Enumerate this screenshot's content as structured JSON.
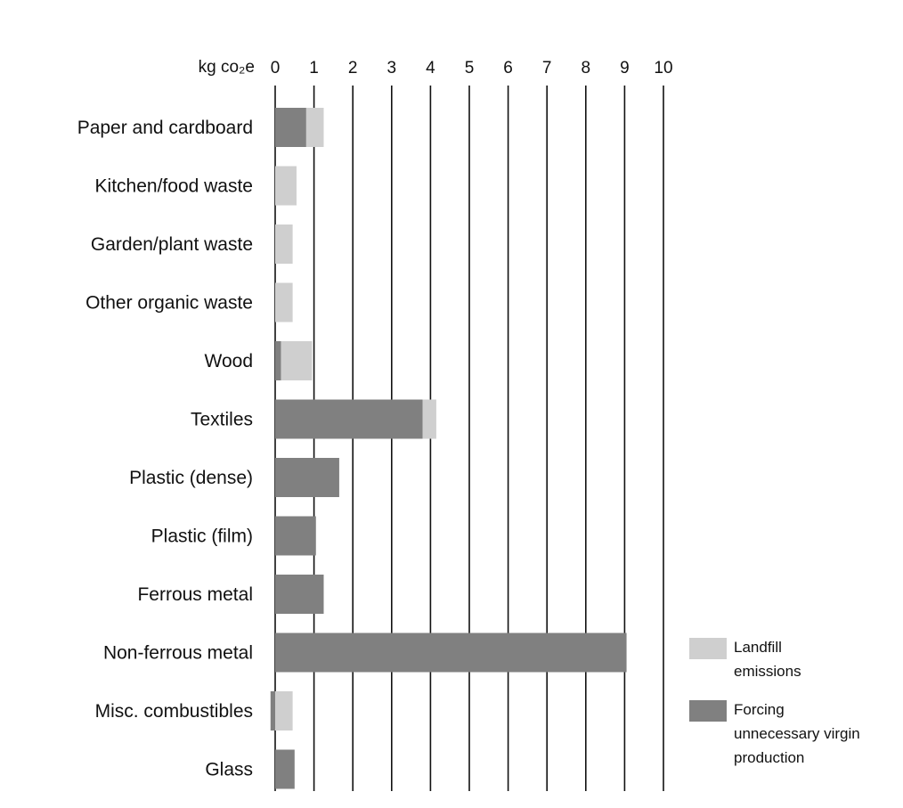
{
  "chart_data": {
    "type": "bar",
    "orientation": "horizontal",
    "stacked": true,
    "unit_label": "kg co₂e",
    "xlim": [
      0,
      10
    ],
    "x_ticks": [
      0,
      1,
      2,
      3,
      4,
      5,
      6,
      7,
      8,
      9,
      10
    ],
    "grid": true,
    "categories": [
      "Paper and cardboard",
      "Kitchen/food waste",
      "Garden/plant waste",
      "Other organic waste",
      "Wood",
      "Textiles",
      "Plastic (dense)",
      "Plastic (film)",
      "Ferrous metal",
      "Non-ferrous metal",
      "Misc. combustibles",
      "Glass"
    ],
    "series": [
      {
        "name": "Forcing unnecessary virgin production",
        "legend_lines": [
          "Forcing",
          "unnecessary virgin",
          "production"
        ],
        "color": "#808080",
        "values": [
          0.8,
          0.0,
          0.0,
          0.0,
          0.15,
          3.8,
          1.65,
          1.05,
          1.25,
          9.05,
          0.12,
          0.5
        ]
      },
      {
        "name": "Landfill emissions",
        "legend_lines": [
          "Landfill",
          "emissions"
        ],
        "color": "#cfcfcf",
        "values": [
          0.45,
          0.55,
          0.45,
          0.45,
          0.8,
          0.35,
          0.0,
          0.0,
          0.0,
          0.0,
          0.45,
          0.0
        ]
      }
    ],
    "legend_position": "bottom-right"
  }
}
